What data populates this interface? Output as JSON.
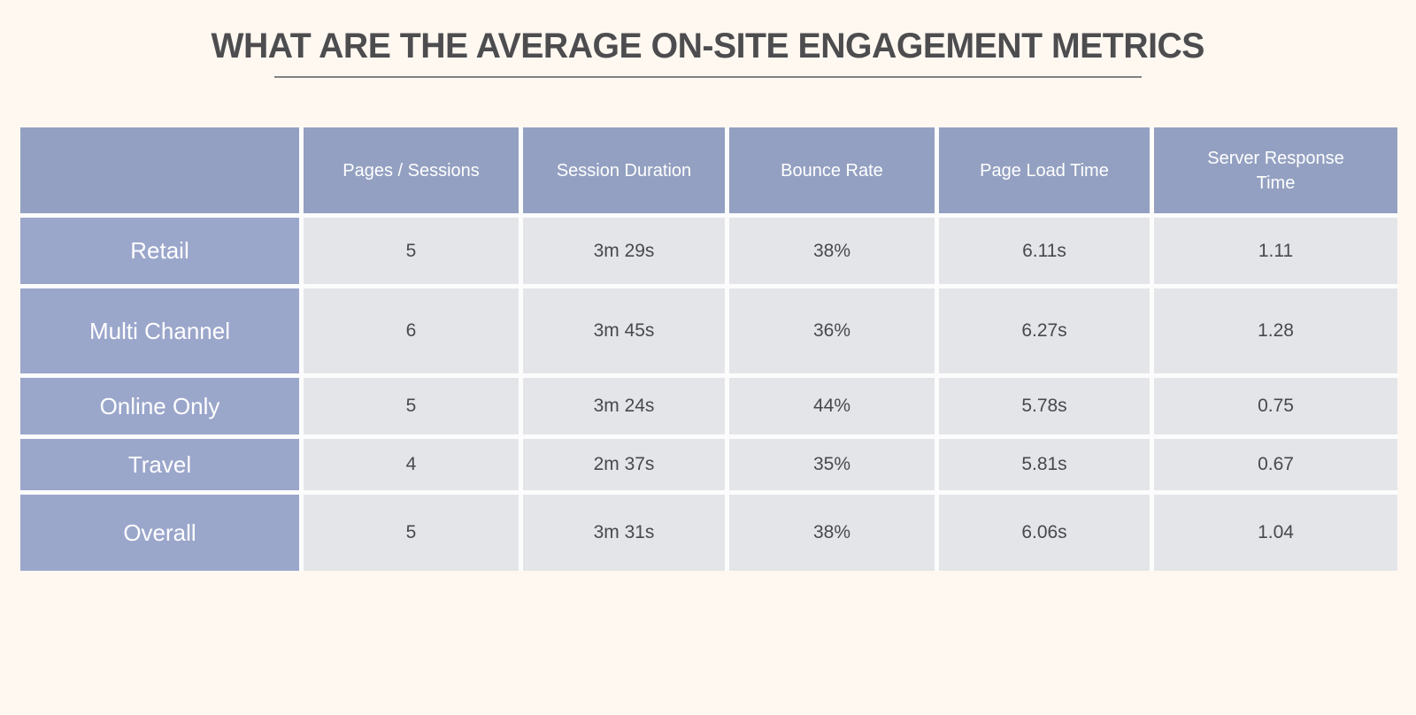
{
  "page": {
    "title": "WHAT ARE THE AVERAGE ON-SITE ENGAGEMENT METRICS"
  },
  "colors": {
    "background": "#FFF8F1",
    "header_cell": "#93A0C1",
    "label_cell": "#9BA6CB",
    "data_cell": "#E4E5E8",
    "title_text": "#4D4D4F",
    "cell_text": "#47494E",
    "header_text": "#FFFFFF",
    "cell_gap": "#FCFCFD",
    "underline": "#828282"
  },
  "chart_data": {
    "type": "table",
    "title": "WHAT ARE THE AVERAGE ON-SITE ENGAGEMENT METRICS",
    "columns": [
      "",
      "Pages / Sessions",
      "Session Duration",
      "Bounce Rate",
      "Page Load Time",
      "Server Response Time"
    ],
    "row_labels": [
      "Retail",
      "Multi Channel",
      "Online Only",
      "Travel",
      "Overall"
    ],
    "rows": [
      [
        "5",
        "3m 29s",
        "38%",
        "6.11s",
        "1.11"
      ],
      [
        "6",
        "3m 45s",
        "36%",
        "6.27s",
        "1.28"
      ],
      [
        "5",
        "3m 24s",
        "44%",
        "5.78s",
        "0.75"
      ],
      [
        "4",
        "2m 37s",
        "35%",
        "5.81s",
        "0.67"
      ],
      [
        "5",
        "3m 31s",
        "38%",
        "6.06s",
        "1.04"
      ]
    ]
  }
}
